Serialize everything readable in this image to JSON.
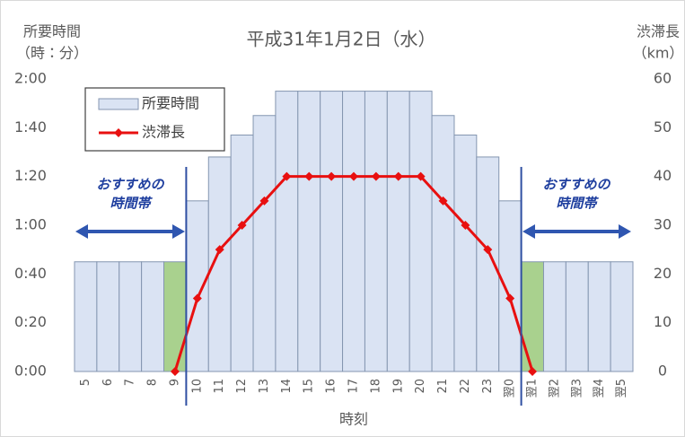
{
  "chart_data": {
    "type": "bar",
    "title": "平成31年1月2日（水）",
    "y_label": [
      "所要時間",
      "（時：分）"
    ],
    "y2_label": [
      "渋滞長",
      "（km）"
    ],
    "x_label": "時刻",
    "categories": [
      "5",
      "6",
      "7",
      "8",
      "9",
      "10",
      "11",
      "12",
      "13",
      "14",
      "15",
      "16",
      "17",
      "18",
      "19",
      "20",
      "21",
      "22",
      "23",
      "翌0",
      "翌1",
      "翌2",
      "翌3",
      "翌4",
      "翌5"
    ],
    "series": [
      {
        "name": "所要時間",
        "type": "bar",
        "color": "#dae3f3",
        "edge_color": "#8496b0",
        "colors": [
          "#dae3f3",
          "#dae3f3",
          "#dae3f3",
          "#dae3f3",
          "#a9d18e",
          "#dae3f3",
          "#dae3f3",
          "#dae3f3",
          "#dae3f3",
          "#dae3f3",
          "#dae3f3",
          "#dae3f3",
          "#dae3f3",
          "#dae3f3",
          "#dae3f3",
          "#dae3f3",
          "#dae3f3",
          "#dae3f3",
          "#dae3f3",
          "#dae3f3",
          "#a9d18e",
          "#dae3f3",
          "#dae3f3",
          "#dae3f3",
          "#dae3f3"
        ],
        "values": [
          45,
          45,
          45,
          45,
          45,
          70,
          88,
          97,
          105,
          115,
          115,
          115,
          115,
          115,
          115,
          115,
          105,
          97,
          88,
          70,
          45,
          45,
          45,
          45,
          45
        ]
      },
      {
        "name": "渋滞長",
        "type": "line",
        "axis": "y2",
        "color": "#e81010",
        "values": [
          null,
          null,
          null,
          null,
          0,
          15,
          25,
          30,
          35,
          40,
          40,
          40,
          40,
          40,
          40,
          40,
          35,
          30,
          25,
          15,
          0,
          null,
          null,
          null,
          null
        ]
      }
    ],
    "ylim": [
      0,
      120
    ],
    "yticks": [
      {
        "value": 0,
        "label": "0:00"
      },
      {
        "value": 20,
        "label": "0:20"
      },
      {
        "value": 40,
        "label": "0:40"
      },
      {
        "value": 60,
        "label": "1:00"
      },
      {
        "value": 80,
        "label": "1:20"
      },
      {
        "value": 100,
        "label": "1:40"
      },
      {
        "value": 120,
        "label": "2:00"
      }
    ],
    "y2lim": [
      0,
      60
    ],
    "y2ticks": [
      0,
      10,
      20,
      30,
      40,
      50,
      60
    ],
    "grid": false,
    "legend": "upper left",
    "annotations": [
      {
        "lines": [
          "おすすめの",
          "時間帯"
        ],
        "color": "#1f3f9f"
      },
      {
        "lines": [
          "おすすめの",
          "時間帯"
        ],
        "color": "#1f3f9f"
      }
    ]
  }
}
